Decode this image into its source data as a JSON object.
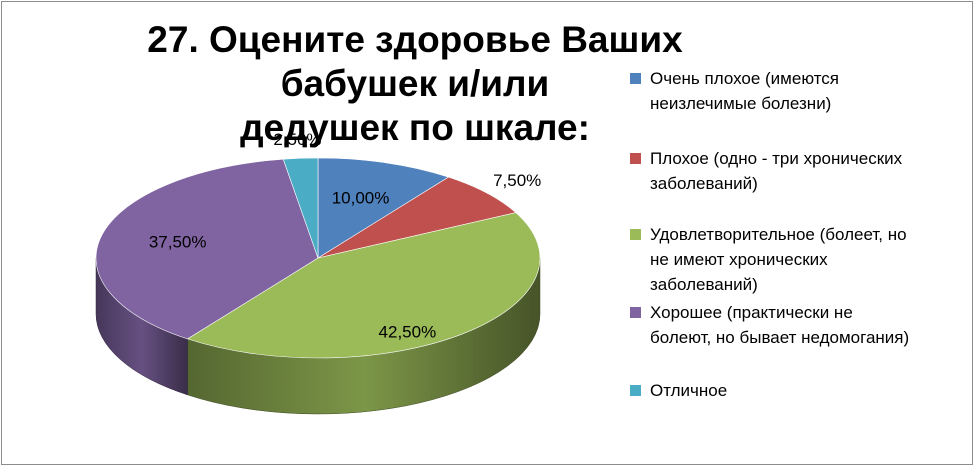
{
  "chart_data": {
    "type": "pie",
    "title": "27. Оцените здоровье Ваших бабушек и/или дедушек по шкале:",
    "title_lines": [
      "27. Оцените здоровье Ваших бабушек и/или",
      "дедушек по шкале:"
    ],
    "categories": [
      "Очень плохое (имеются неизлечимые болезни)",
      "Плохое (одно - три хронических заболеваний)",
      "Удовлетворительное (болеет, но не имеют хронических заболеваний)",
      "Хорошее (практически не болеют, но бывает недомогания)",
      "Отличное"
    ],
    "values": [
      10.0,
      7.5,
      42.5,
      37.5,
      2.5
    ],
    "data_labels": [
      "10,00%",
      "7,50%",
      "42,50%",
      "37,50%",
      "2,50%"
    ],
    "colors": [
      "#4f81bd",
      "#c0504d",
      "#9bbb59",
      "#8064a2",
      "#4bacc6"
    ],
    "style": "3d",
    "legend_position": "right"
  },
  "legend": [
    {
      "lines": [
        "Очень плохое (имеются",
        "неизлечимые болезни)"
      ],
      "color": "#4f81bd"
    },
    {
      "lines": [
        "Плохое (одно - три хронических",
        "заболеваний)"
      ],
      "color": "#c0504d"
    },
    {
      "lines": [
        "Удовлетворительное (болеет, но",
        "не имеют хронических",
        "заболеваний)"
      ],
      "color": "#9bbb59"
    },
    {
      "lines": [
        "Хорошее (практически не",
        "болеют, но бывает недомогания)"
      ],
      "color": "#8064a2"
    },
    {
      "lines": [
        "Отличное"
      ],
      "color": "#4bacc6"
    }
  ]
}
